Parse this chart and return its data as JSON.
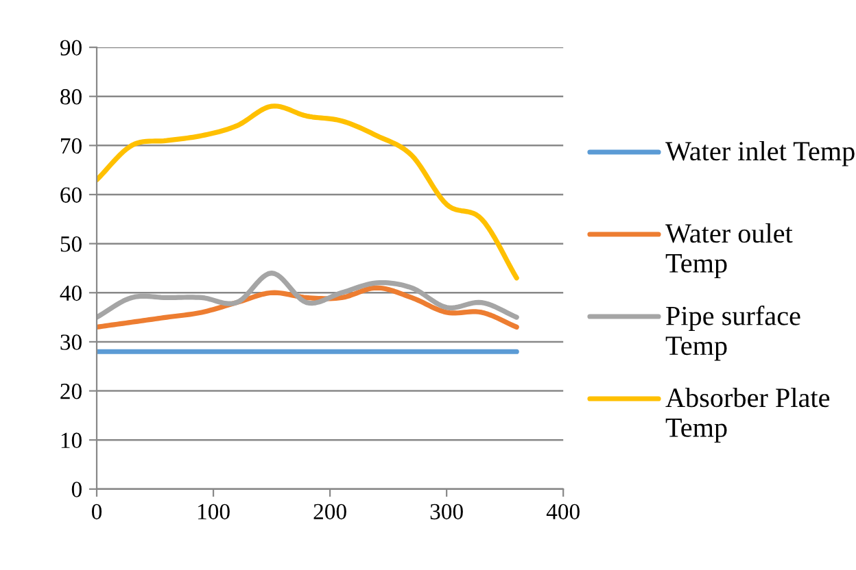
{
  "chart_data": {
    "type": "line",
    "x": [
      0,
      30,
      60,
      90,
      120,
      150,
      180,
      210,
      240,
      270,
      300,
      330,
      360
    ],
    "series": [
      {
        "name": "Water inlet Temp",
        "color": "#5b9bd5",
        "values": [
          28,
          28,
          28,
          28,
          28,
          28,
          28,
          28,
          28,
          28,
          28,
          28,
          28
        ]
      },
      {
        "name": "Water oulet Temp",
        "color": "#ed7d31",
        "values": [
          33,
          34,
          35,
          36,
          38,
          40,
          39,
          39,
          41,
          39,
          36,
          36,
          33
        ]
      },
      {
        "name": "Pipe surface Temp",
        "color": "#a5a5a5",
        "values": [
          35,
          39,
          39,
          39,
          38,
          44,
          38,
          40,
          42,
          41,
          37,
          38,
          35
        ]
      },
      {
        "name": "Absorber Plate Temp",
        "color": "#ffc000",
        "values": [
          63,
          70,
          71,
          72,
          74,
          78,
          76,
          75,
          72,
          68,
          58,
          55,
          43
        ]
      }
    ],
    "xlim": [
      0,
      400
    ],
    "xticks": [
      0,
      100,
      200,
      300,
      400
    ],
    "ylim": [
      0,
      90
    ],
    "yticks": [
      0,
      10,
      20,
      30,
      40,
      50,
      60,
      70,
      80,
      90
    ],
    "grid": "y",
    "legend": "right",
    "marker": "none",
    "line_style": "solid"
  }
}
